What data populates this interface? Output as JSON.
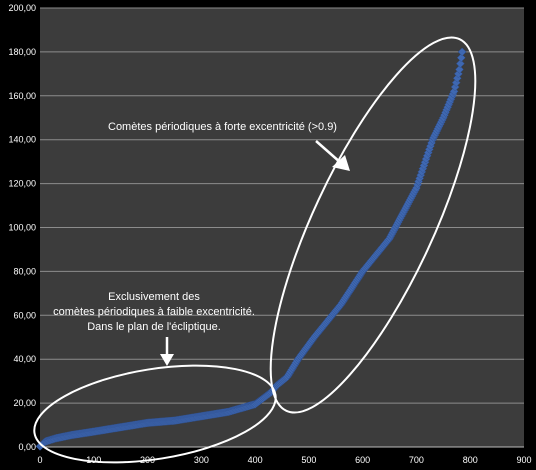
{
  "chart_data": {
    "type": "scatter",
    "title": "",
    "xlabel": "",
    "ylabel": "",
    "xlim": [
      0,
      900
    ],
    "ylim": [
      0,
      200
    ],
    "x_ticks": [
      "0",
      "100",
      "200",
      "300",
      "400",
      "500",
      "600",
      "700",
      "800",
      "900"
    ],
    "y_ticks": [
      "0,00",
      "20,00",
      "40,00",
      "60,00",
      "80,00",
      "100,00",
      "120,00",
      "140,00",
      "160,00",
      "180,00",
      "200,00"
    ],
    "grid": "horizontal",
    "colors": {
      "background": "#000000",
      "plot_area": "#3c3c3c",
      "grid": "#8c8c8c",
      "marker": "#3f68b1",
      "annotation": "#ffffff"
    },
    "series": [
      {
        "marker": "diamond",
        "control_points": [
          [
            0,
            0.3
          ],
          [
            10,
            2.5
          ],
          [
            30,
            4
          ],
          [
            60,
            5.5
          ],
          [
            100,
            7
          ],
          [
            150,
            9
          ],
          [
            200,
            11
          ],
          [
            250,
            12
          ],
          [
            300,
            14
          ],
          [
            350,
            16
          ],
          [
            400,
            19.5
          ],
          [
            430,
            25
          ],
          [
            440,
            28
          ],
          [
            460,
            32
          ],
          [
            480,
            40
          ],
          [
            510,
            50
          ],
          [
            560,
            65
          ],
          [
            600,
            80
          ],
          [
            650,
            95
          ],
          [
            700,
            118
          ],
          [
            730,
            140
          ],
          [
            750,
            150
          ],
          [
            770,
            162
          ],
          [
            780,
            172
          ],
          [
            785,
            180
          ]
        ]
      }
    ],
    "annotations": [
      {
        "name": "high-eccentricity",
        "lines": [
          "Comètes périodiques à forte excentricité (>0.9)"
        ]
      },
      {
        "name": "low-eccentricity",
        "lines": [
          "Exclusivement des",
          "comètes périodiques à faible excentricité.",
          "Dans le plan de l'écliptique."
        ]
      }
    ]
  }
}
